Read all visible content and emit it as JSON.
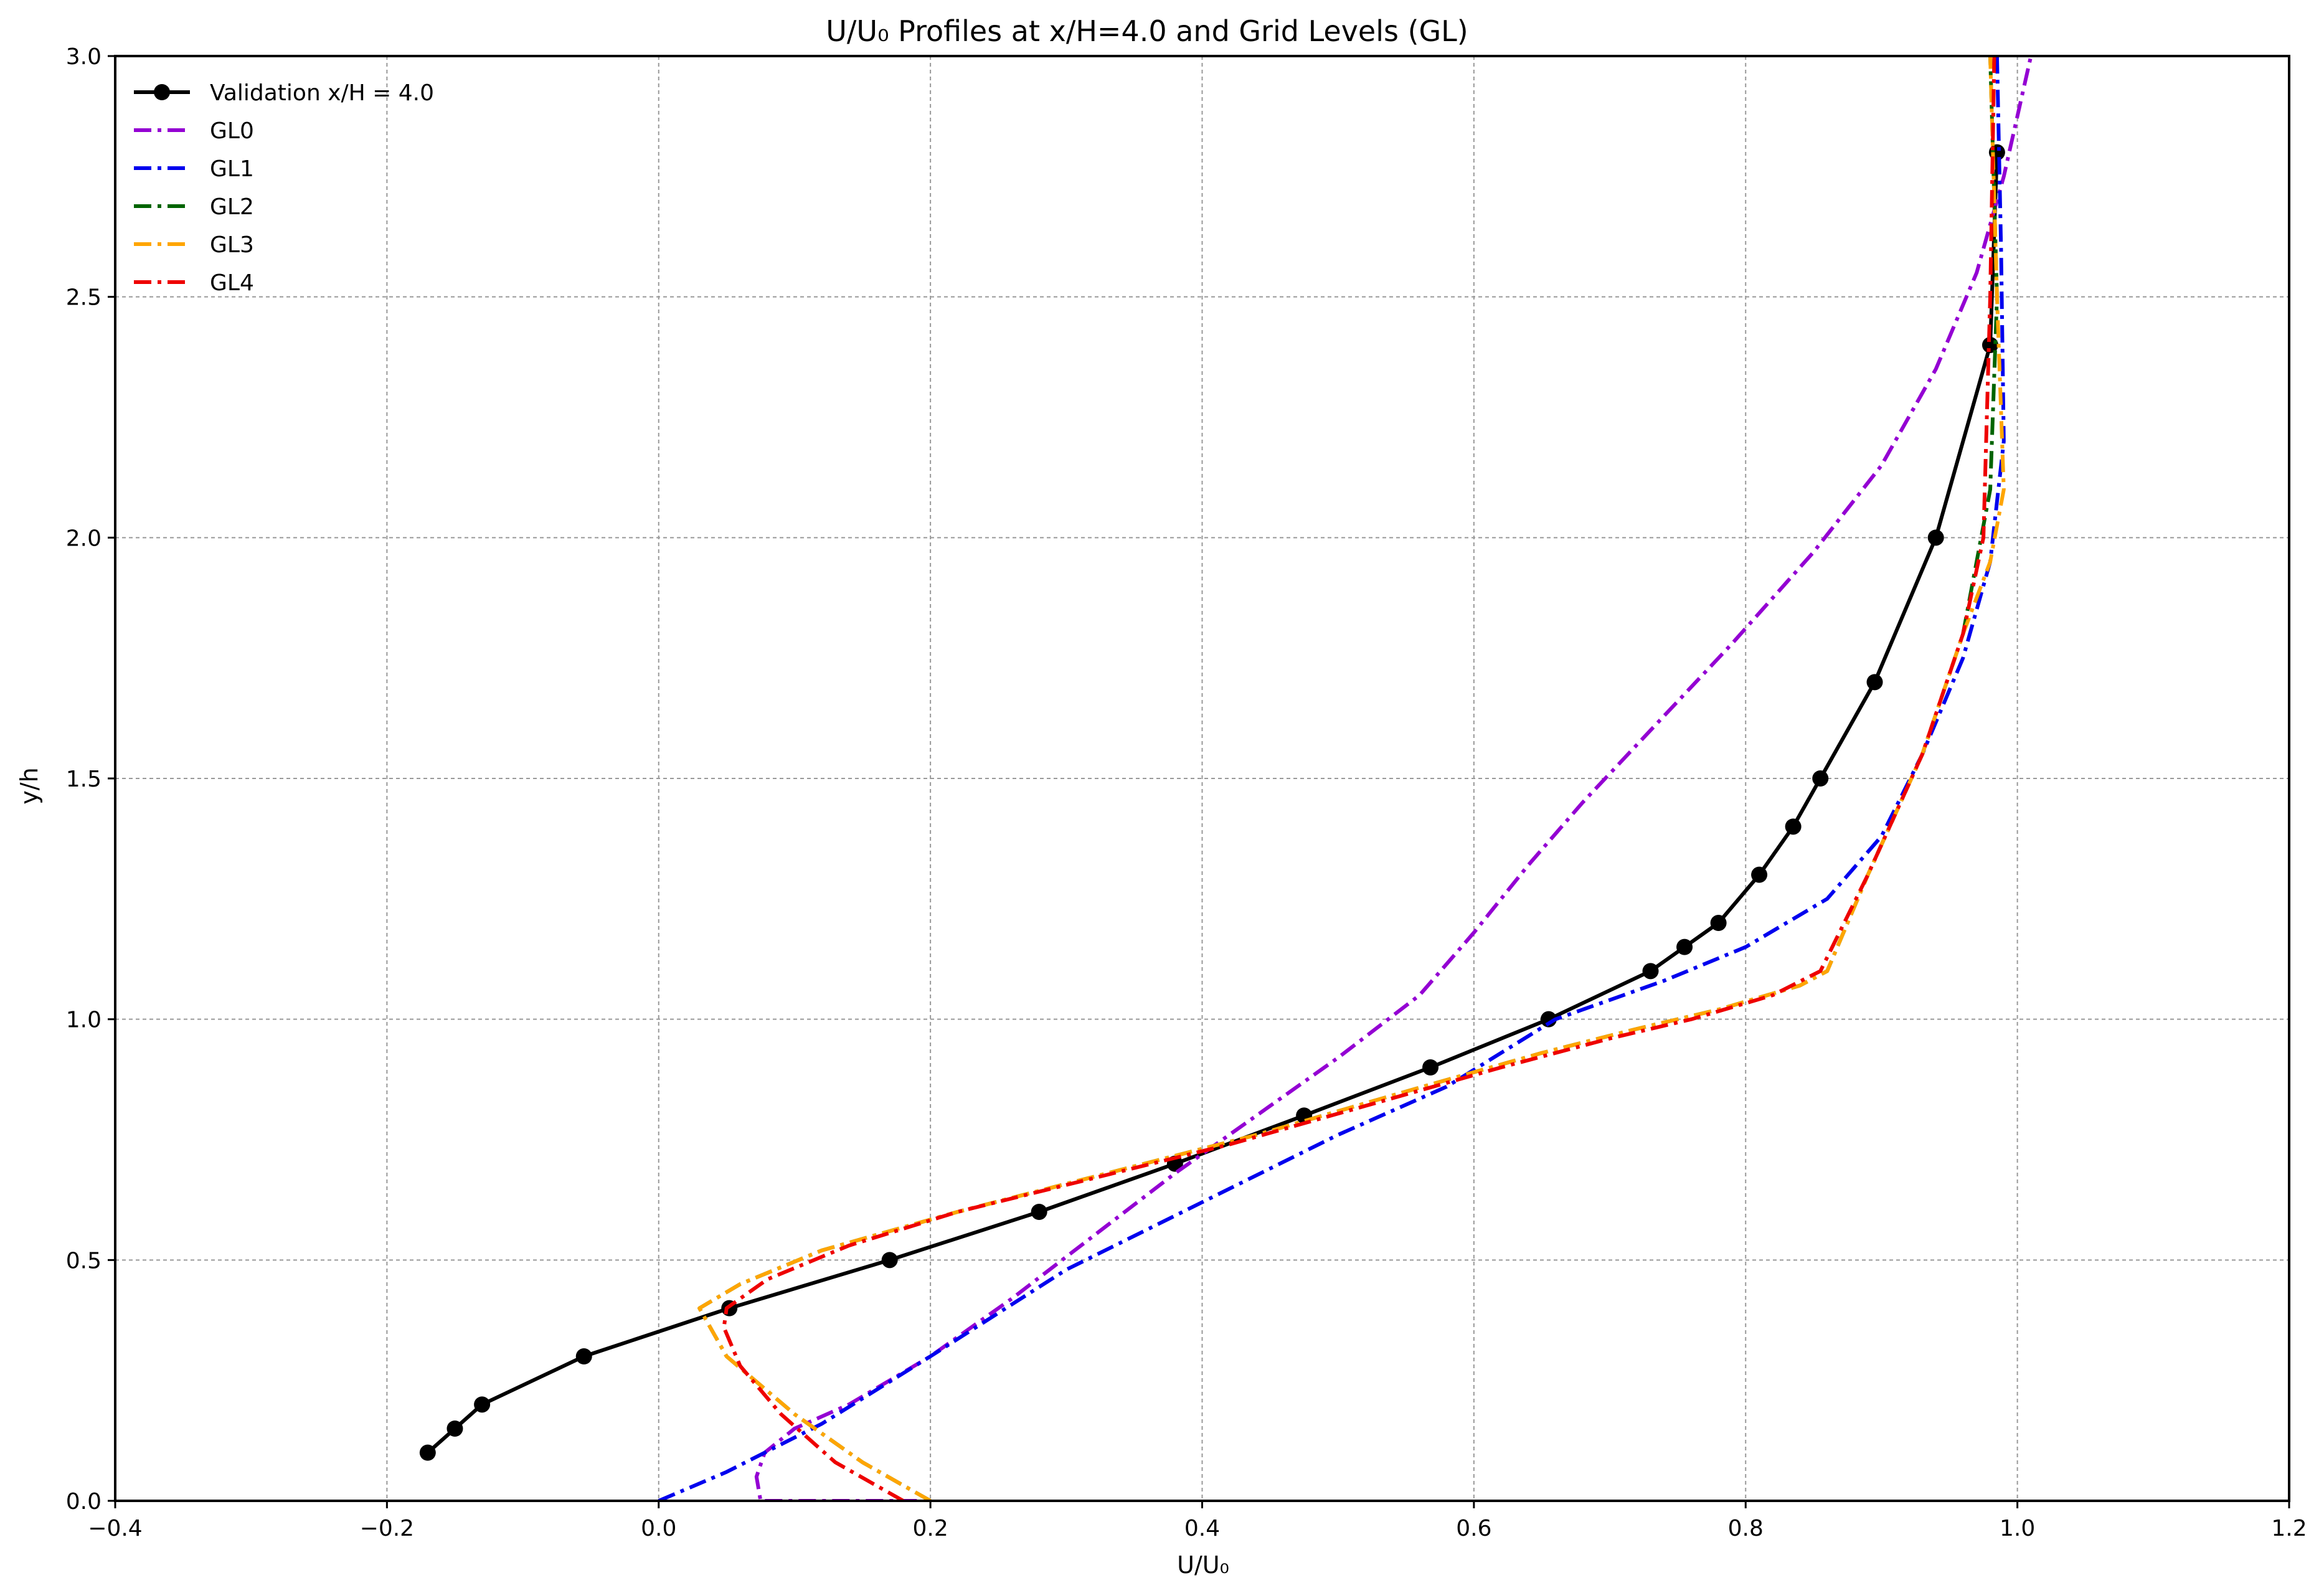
{
  "chart_data": {
    "type": "line",
    "title": "U/U₀ Profiles at x/H=4.0 and Grid Levels (GL)",
    "xlabel": "U/U₀",
    "ylabel": "y/h",
    "xlim": [
      -0.4,
      1.2
    ],
    "ylim": [
      0.0,
      3.0
    ],
    "xticks": [
      -0.4,
      -0.2,
      0.0,
      0.2,
      0.4,
      0.6,
      0.8,
      1.0,
      1.2
    ],
    "xtick_labels": [
      "−0.4",
      "−0.2",
      "0.0",
      "0.2",
      "0.4",
      "0.6",
      "0.8",
      "1.0",
      "1.2"
    ],
    "yticks": [
      0.0,
      0.5,
      1.0,
      1.5,
      2.0,
      2.5,
      3.0
    ],
    "ytick_labels": [
      "0.0",
      "0.5",
      "1.0",
      "1.5",
      "2.0",
      "2.5",
      "3.0"
    ],
    "grid": true,
    "legend_position": "top-left",
    "series": [
      {
        "name": "Validation x/H = 4.0",
        "color": "#000000",
        "style": "solid-markers",
        "x": [
          -0.17,
          -0.15,
          -0.13,
          -0.055,
          0.052,
          0.17,
          0.28,
          0.38,
          0.475,
          0.568,
          0.655,
          0.73,
          0.755,
          0.78,
          0.81,
          0.835,
          0.855,
          0.895,
          0.94,
          0.98,
          0.985
        ],
        "y": [
          0.1,
          0.15,
          0.2,
          0.3,
          0.4,
          0.5,
          0.6,
          0.7,
          0.8,
          0.9,
          1.0,
          1.1,
          1.15,
          1.2,
          1.3,
          1.4,
          1.5,
          1.7,
          2.0,
          2.4,
          2.8
        ]
      },
      {
        "name": "GL0",
        "color": "#9400D3",
        "style": "dashdot",
        "x": [
          0.19,
          0.075,
          0.072,
          0.078,
          0.1,
          0.14,
          0.2,
          0.26,
          0.32,
          0.38,
          0.44,
          0.5,
          0.56,
          0.6,
          0.64,
          0.68,
          0.73,
          0.79,
          0.85,
          0.9,
          0.94,
          0.97,
          0.99,
          1.01
        ],
        "y": [
          0.0,
          0.0,
          0.05,
          0.1,
          0.15,
          0.2,
          0.3,
          0.42,
          0.55,
          0.68,
          0.8,
          0.92,
          1.05,
          1.18,
          1.32,
          1.45,
          1.6,
          1.78,
          1.97,
          2.15,
          2.35,
          2.55,
          2.75,
          3.0
        ]
      },
      {
        "name": "GL1",
        "color": "#0000EE",
        "style": "dashdot",
        "x": [
          0.0,
          0.05,
          0.12,
          0.2,
          0.3,
          0.4,
          0.5,
          0.58,
          0.66,
          0.74,
          0.8,
          0.86,
          0.9,
          0.93,
          0.96,
          0.98,
          0.99,
          0.988,
          0.985
        ],
        "y": [
          0.0,
          0.06,
          0.16,
          0.3,
          0.48,
          0.62,
          0.76,
          0.86,
          1.0,
          1.08,
          1.15,
          1.25,
          1.38,
          1.55,
          1.75,
          1.95,
          2.2,
          2.6,
          3.0
        ]
      },
      {
        "name": "GL2",
        "color": "#006400",
        "style": "dashdot",
        "x": [
          0.2,
          0.15,
          0.1,
          0.05,
          0.03,
          0.06,
          0.12,
          0.22,
          0.33,
          0.44,
          0.55,
          0.65,
          0.72,
          0.78,
          0.84,
          0.86,
          0.89,
          0.93,
          0.96,
          0.98,
          0.985,
          0.98
        ],
        "y": [
          0.0,
          0.08,
          0.18,
          0.3,
          0.4,
          0.45,
          0.52,
          0.6,
          0.68,
          0.76,
          0.85,
          0.93,
          0.98,
          1.02,
          1.07,
          1.1,
          1.3,
          1.55,
          1.8,
          2.1,
          2.5,
          3.0
        ]
      },
      {
        "name": "GL3",
        "color": "#FFA500",
        "style": "dashdot",
        "x": [
          0.2,
          0.15,
          0.1,
          0.05,
          0.03,
          0.06,
          0.12,
          0.22,
          0.33,
          0.44,
          0.55,
          0.65,
          0.72,
          0.78,
          0.84,
          0.86,
          0.89,
          0.93,
          0.96,
          0.98,
          0.99,
          0.985,
          0.98
        ],
        "y": [
          0.0,
          0.08,
          0.18,
          0.3,
          0.4,
          0.45,
          0.52,
          0.6,
          0.68,
          0.76,
          0.85,
          0.93,
          0.98,
          1.02,
          1.07,
          1.1,
          1.3,
          1.55,
          1.8,
          1.95,
          2.1,
          2.5,
          3.0
        ]
      },
      {
        "name": "GL4",
        "color": "#EE0000",
        "style": "dashdot",
        "x": [
          0.18,
          0.13,
          0.09,
          0.06,
          0.048,
          0.05,
          0.08,
          0.14,
          0.22,
          0.32,
          0.42,
          0.52,
          0.62,
          0.7,
          0.76,
          0.82,
          0.855,
          0.89,
          0.93,
          0.96,
          0.975,
          0.98,
          0.983
        ],
        "y": [
          0.0,
          0.08,
          0.18,
          0.28,
          0.36,
          0.4,
          0.46,
          0.53,
          0.6,
          0.67,
          0.74,
          0.82,
          0.9,
          0.96,
          1.0,
          1.05,
          1.1,
          1.3,
          1.55,
          1.8,
          2.0,
          2.5,
          3.0
        ]
      }
    ]
  }
}
